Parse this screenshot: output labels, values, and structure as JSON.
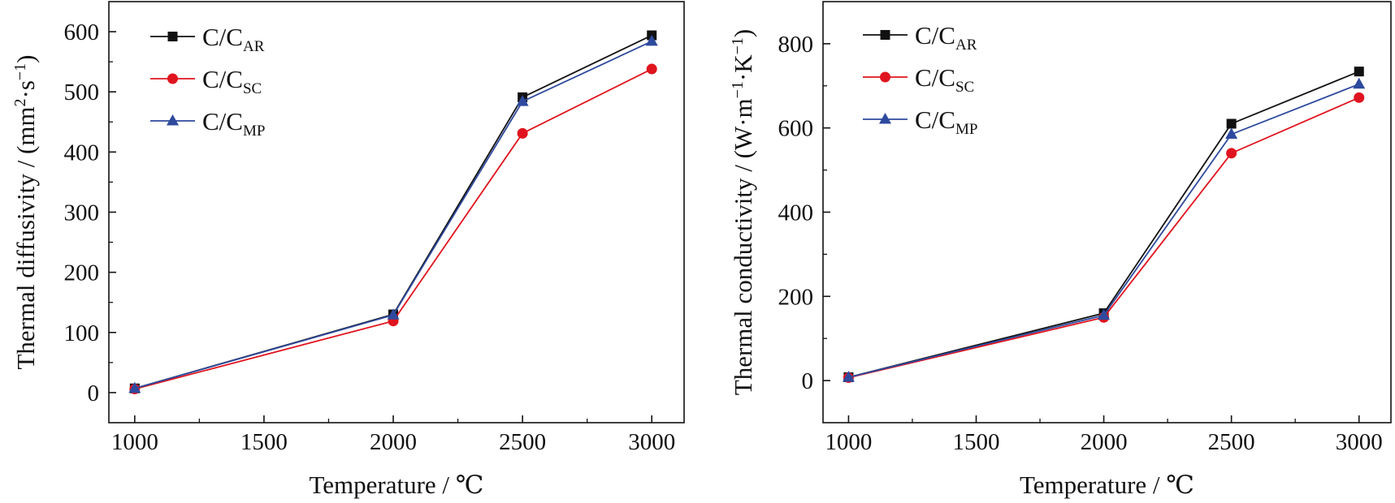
{
  "chart_data": [
    {
      "type": "line",
      "title": "",
      "xlabel": "Temperature / ℃",
      "ylabel": "Thermal diffusivity / (mm²·s⁻¹)",
      "ylabel_parts": {
        "prefix": "Thermal diffusivity / (mm",
        "sup1": "2",
        "mid": "·s",
        "sup2": "−1",
        "suffix": ")"
      },
      "xlim": [
        900,
        3125
      ],
      "ylim": [
        -50,
        650
      ],
      "xticks": [
        1000,
        1500,
        2000,
        2500,
        3000
      ],
      "yticks": [
        0,
        100,
        200,
        300,
        400,
        500,
        600
      ],
      "legend_position": "top-left",
      "x": [
        1000,
        2000,
        2500,
        3000
      ],
      "series": [
        {
          "name": "C/C",
          "name_sub": "AR",
          "color": "#111111",
          "marker": "square",
          "values": [
            7,
            130,
            491,
            594
          ]
        },
        {
          "name": "C/C",
          "name_sub": "SC",
          "color": "#e0141e",
          "marker": "circle",
          "values": [
            6,
            119,
            431,
            538
          ]
        },
        {
          "name": "C/C",
          "name_sub": "MP",
          "color": "#2e4a9e",
          "marker": "triangle",
          "values": [
            7,
            129,
            484,
            584
          ]
        }
      ]
    },
    {
      "type": "line",
      "title": "",
      "xlabel": "Temperature / ℃",
      "ylabel": "Thermal conductivity / (W·m⁻¹·K⁻¹)",
      "ylabel_parts": {
        "prefix": "Thermal conductivity / (W·m",
        "sup1": "−1",
        "mid": "·K",
        "sup2": "−1",
        "suffix": ")"
      },
      "xlim": [
        900,
        3125
      ],
      "ylim": [
        -100,
        900
      ],
      "xticks": [
        1000,
        1500,
        2000,
        2500,
        3000
      ],
      "yticks": [
        0,
        200,
        400,
        600,
        800
      ],
      "legend_position": "top-left",
      "x": [
        1000,
        2000,
        2500,
        3000
      ],
      "series": [
        {
          "name": "C/C",
          "name_sub": "AR",
          "color": "#111111",
          "marker": "square",
          "values": [
            8,
            160,
            610,
            734
          ]
        },
        {
          "name": "C/C",
          "name_sub": "SC",
          "color": "#e0141e",
          "marker": "circle",
          "values": [
            7,
            150,
            540,
            672
          ]
        },
        {
          "name": "C/C",
          "name_sub": "MP",
          "color": "#2e4a9e",
          "marker": "triangle",
          "values": [
            8,
            155,
            585,
            704
          ]
        }
      ]
    }
  ]
}
